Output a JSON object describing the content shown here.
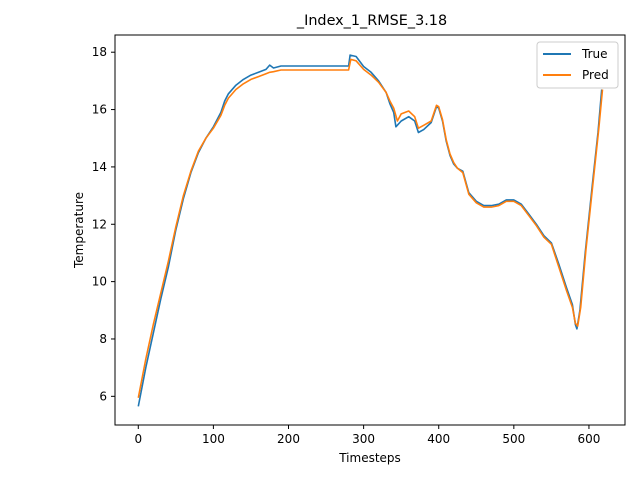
{
  "chart_data": {
    "type": "line",
    "title": "_Index_1_RMSE_3.18",
    "xlabel": "Timesteps",
    "ylabel": "Temperature",
    "xlim": [
      -31,
      648
    ],
    "ylim": [
      5.0,
      18.6
    ],
    "xticks": [
      0,
      100,
      200,
      300,
      400,
      500,
      600
    ],
    "yticks": [
      6,
      8,
      10,
      12,
      14,
      16,
      18
    ],
    "grid": false,
    "legend_position": "top-right",
    "series": [
      {
        "name": "True",
        "color": "#1f77b4",
        "points": [
          [
            0,
            5.65
          ],
          [
            10,
            7.0
          ],
          [
            20,
            8.2
          ],
          [
            30,
            9.4
          ],
          [
            40,
            10.5
          ],
          [
            50,
            11.8
          ],
          [
            60,
            12.9
          ],
          [
            70,
            13.8
          ],
          [
            80,
            14.5
          ],
          [
            90,
            15.0
          ],
          [
            100,
            15.4
          ],
          [
            110,
            15.9
          ],
          [
            115,
            16.3
          ],
          [
            120,
            16.55
          ],
          [
            130,
            16.85
          ],
          [
            140,
            17.05
          ],
          [
            150,
            17.2
          ],
          [
            160,
            17.3
          ],
          [
            170,
            17.4
          ],
          [
            175,
            17.55
          ],
          [
            180,
            17.45
          ],
          [
            190,
            17.52
          ],
          [
            200,
            17.52
          ],
          [
            250,
            17.52
          ],
          [
            280,
            17.52
          ],
          [
            282,
            17.9
          ],
          [
            290,
            17.85
          ],
          [
            300,
            17.5
          ],
          [
            310,
            17.3
          ],
          [
            320,
            17.0
          ],
          [
            330,
            16.6
          ],
          [
            335,
            16.2
          ],
          [
            340,
            15.9
          ],
          [
            343,
            15.4
          ],
          [
            350,
            15.6
          ],
          [
            360,
            15.75
          ],
          [
            368,
            15.6
          ],
          [
            373,
            15.2
          ],
          [
            380,
            15.3
          ],
          [
            390,
            15.55
          ],
          [
            397,
            16.1
          ],
          [
            400,
            16.05
          ],
          [
            405,
            15.6
          ],
          [
            410,
            14.9
          ],
          [
            415,
            14.4
          ],
          [
            420,
            14.1
          ],
          [
            425,
            13.95
          ],
          [
            432,
            13.85
          ],
          [
            440,
            13.1
          ],
          [
            450,
            12.8
          ],
          [
            460,
            12.65
          ],
          [
            470,
            12.65
          ],
          [
            480,
            12.7
          ],
          [
            490,
            12.85
          ],
          [
            500,
            12.85
          ],
          [
            510,
            12.7
          ],
          [
            520,
            12.35
          ],
          [
            530,
            12.0
          ],
          [
            540,
            11.6
          ],
          [
            550,
            11.35
          ],
          [
            560,
            10.6
          ],
          [
            570,
            9.8
          ],
          [
            578,
            9.2
          ],
          [
            582,
            8.5
          ],
          [
            584,
            8.35
          ],
          [
            588,
            9.0
          ],
          [
            595,
            11.0
          ],
          [
            605,
            13.5
          ],
          [
            612,
            15.2
          ],
          [
            617,
            16.7
          ]
        ]
      },
      {
        "name": "Pred",
        "color": "#ff7f0e",
        "points": [
          [
            0,
            5.95
          ],
          [
            10,
            7.3
          ],
          [
            20,
            8.5
          ],
          [
            30,
            9.6
          ],
          [
            40,
            10.7
          ],
          [
            50,
            11.9
          ],
          [
            60,
            13.0
          ],
          [
            70,
            13.85
          ],
          [
            80,
            14.55
          ],
          [
            90,
            15.0
          ],
          [
            100,
            15.35
          ],
          [
            110,
            15.8
          ],
          [
            115,
            16.15
          ],
          [
            120,
            16.4
          ],
          [
            130,
            16.7
          ],
          [
            140,
            16.9
          ],
          [
            150,
            17.05
          ],
          [
            160,
            17.15
          ],
          [
            170,
            17.25
          ],
          [
            175,
            17.3
          ],
          [
            180,
            17.32
          ],
          [
            190,
            17.38
          ],
          [
            200,
            17.38
          ],
          [
            250,
            17.38
          ],
          [
            280,
            17.38
          ],
          [
            283,
            17.75
          ],
          [
            290,
            17.7
          ],
          [
            300,
            17.4
          ],
          [
            310,
            17.2
          ],
          [
            320,
            16.95
          ],
          [
            330,
            16.6
          ],
          [
            335,
            16.3
          ],
          [
            340,
            16.05
          ],
          [
            345,
            15.6
          ],
          [
            350,
            15.85
          ],
          [
            360,
            15.95
          ],
          [
            368,
            15.75
          ],
          [
            373,
            15.35
          ],
          [
            380,
            15.45
          ],
          [
            390,
            15.6
          ],
          [
            397,
            16.15
          ],
          [
            400,
            16.1
          ],
          [
            405,
            15.65
          ],
          [
            410,
            14.95
          ],
          [
            415,
            14.45
          ],
          [
            420,
            14.15
          ],
          [
            425,
            13.95
          ],
          [
            432,
            13.8
          ],
          [
            440,
            13.05
          ],
          [
            450,
            12.75
          ],
          [
            460,
            12.6
          ],
          [
            470,
            12.6
          ],
          [
            480,
            12.65
          ],
          [
            490,
            12.8
          ],
          [
            500,
            12.8
          ],
          [
            510,
            12.65
          ],
          [
            520,
            12.3
          ],
          [
            530,
            11.95
          ],
          [
            540,
            11.55
          ],
          [
            550,
            11.3
          ],
          [
            560,
            10.5
          ],
          [
            570,
            9.7
          ],
          [
            578,
            9.1
          ],
          [
            582,
            8.55
          ],
          [
            585,
            8.45
          ],
          [
            589,
            9.1
          ],
          [
            596,
            11.1
          ],
          [
            606,
            13.6
          ],
          [
            613,
            15.3
          ],
          [
            618,
            16.7
          ]
        ]
      }
    ]
  }
}
